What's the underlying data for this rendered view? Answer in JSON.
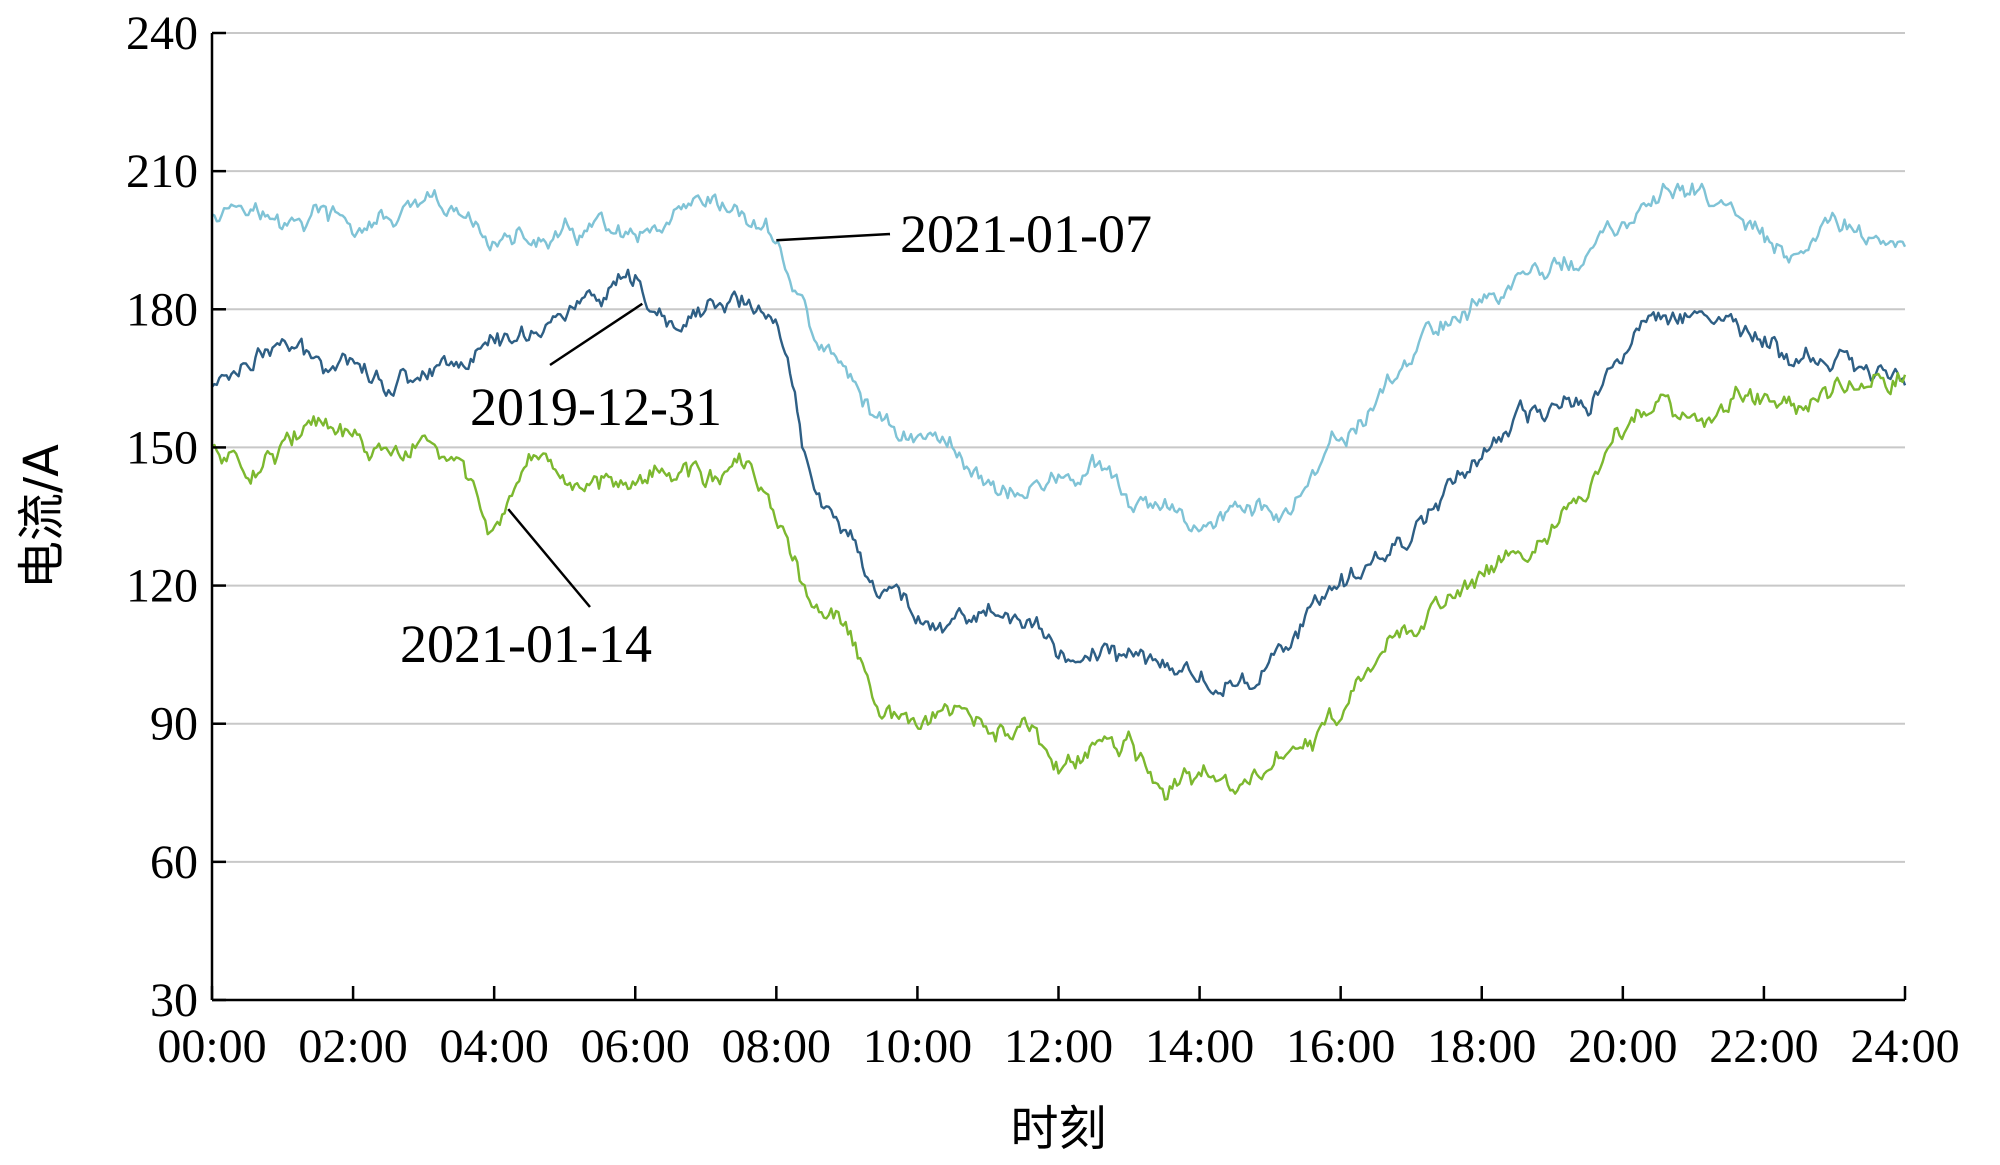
{
  "chart_data": {
    "type": "line",
    "xlabel": "时刻",
    "ylabel": "电流/A",
    "ylim": [
      30,
      240
    ],
    "yticks": [
      30,
      60,
      90,
      120,
      150,
      180,
      210,
      240
    ],
    "xlim": [
      0,
      24
    ],
    "xticks": [
      "00:00",
      "02:00",
      "04:00",
      "06:00",
      "08:00",
      "10:00",
      "12:00",
      "14:00",
      "16:00",
      "18:00",
      "20:00",
      "22:00",
      "24:00"
    ],
    "grid": true,
    "series": [
      {
        "name": "2021-01-07",
        "color": "#7fc3d6",
        "x": [
          0,
          0.5,
          1,
          1.5,
          2,
          2.5,
          3,
          3.5,
          4,
          4.5,
          5,
          5.5,
          6,
          6.5,
          7,
          7.5,
          8,
          8.5,
          9,
          9.5,
          10,
          10.5,
          11,
          11.5,
          12,
          12.5,
          13,
          13.5,
          14,
          14.5,
          15,
          15.5,
          16,
          16.5,
          17,
          17.5,
          18,
          18.5,
          19,
          19.5,
          20,
          20.5,
          21,
          21.5,
          22,
          22.5,
          23,
          23.5,
          24
        ],
        "values": [
          202,
          205,
          197,
          201,
          197,
          199,
          201,
          199,
          196,
          194,
          195,
          197,
          193,
          196,
          200,
          200,
          195,
          175,
          165,
          155,
          153,
          150,
          143,
          140,
          143,
          145,
          138,
          135,
          133,
          137,
          135,
          140,
          150,
          160,
          170,
          178,
          182,
          186,
          189,
          192,
          198,
          202,
          208,
          200,
          195,
          188,
          200,
          196,
          194
        ]
      },
      {
        "name": "2019-12-31",
        "color": "#2e5f85",
        "x": [
          0,
          0.5,
          1,
          1.5,
          2,
          2.5,
          3,
          3.5,
          4,
          4.5,
          5,
          5.5,
          6,
          6.5,
          7,
          7.5,
          8,
          8.5,
          9,
          9.5,
          10,
          10.5,
          11,
          11.5,
          12,
          12.5,
          13,
          13.5,
          14,
          14.5,
          15,
          15.5,
          16,
          16.5,
          17,
          17.5,
          18,
          18.5,
          19,
          19.5,
          20,
          20.5,
          21,
          21.5,
          22,
          22.5,
          23,
          23.5,
          24
        ],
        "values": [
          163,
          170,
          172,
          168,
          172,
          164,
          167,
          170,
          172,
          176,
          180,
          182,
          183,
          174,
          180,
          182,
          178,
          140,
          133,
          120,
          114,
          113,
          115,
          112,
          105,
          106,
          104,
          103,
          100,
          98,
          104,
          112,
          118,
          126,
          132,
          142,
          150,
          154,
          157,
          160,
          170,
          180,
          181,
          177,
          173,
          168,
          168,
          166,
          165
        ]
      },
      {
        "name": "2021-01-14",
        "color": "#7cb82f",
        "x": [
          0,
          0.5,
          1,
          1.5,
          2,
          2.5,
          3,
          3.5,
          4,
          4.5,
          5,
          5.5,
          6,
          6.5,
          7,
          7.5,
          8,
          8.5,
          9,
          9.5,
          10,
          10.5,
          11,
          11.5,
          12,
          12.5,
          13,
          13.5,
          14,
          14.5,
          15,
          15.5,
          16,
          16.5,
          17,
          17.5,
          18,
          18.5,
          19,
          19.5,
          20,
          20.5,
          21,
          21.5,
          22,
          22.5,
          23,
          23.5,
          24
        ],
        "values": [
          150,
          146,
          152,
          154,
          151,
          147,
          150,
          145,
          133,
          142,
          140,
          143,
          146,
          145,
          144,
          145,
          135,
          115,
          110,
          90,
          90,
          92,
          88,
          88,
          80,
          83,
          86,
          74,
          78,
          76,
          80,
          86,
          92,
          102,
          110,
          118,
          122,
          130,
          132,
          140,
          152,
          160,
          158,
          158,
          162,
          160,
          165,
          165,
          166
        ]
      }
    ],
    "annotations": [
      {
        "text": "2021-01-07",
        "series": 0
      },
      {
        "text": "2019-12-31",
        "series": 1
      },
      {
        "text": "2021-01-14",
        "series": 2
      }
    ]
  }
}
